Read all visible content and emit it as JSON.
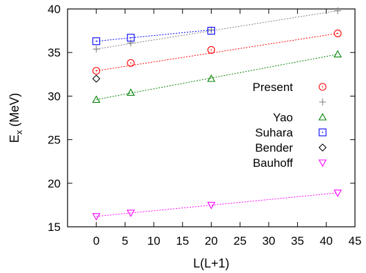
{
  "chart_data": {
    "type": "scatter",
    "xlabel": "L(L+1)",
    "ylabel_main": "E",
    "ylabel_sub": "x",
    "ylabel_unit": " (MeV)",
    "xlim": [
      -5,
      45
    ],
    "ylim": [
      15,
      40
    ],
    "xticks": [
      0,
      5,
      10,
      15,
      20,
      25,
      30,
      35,
      40,
      45
    ],
    "yticks": [
      15,
      20,
      25,
      30,
      35,
      40
    ],
    "legend_position": "right",
    "series": [
      {
        "name": "Present",
        "marker": "circle",
        "color": "#ff0000",
        "points": [
          [
            0,
            32.9
          ],
          [
            6,
            33.8
          ],
          [
            20,
            35.3
          ],
          [
            42,
            37.2
          ]
        ],
        "fit": [
          [
            0,
            32.9
          ],
          [
            42,
            37.2
          ]
        ]
      },
      {
        "name": "",
        "marker": "plus",
        "color": "#7f7f7f",
        "points": [
          [
            0,
            35.4
          ],
          [
            6,
            36.1
          ],
          [
            20,
            37.6
          ],
          [
            42,
            39.8
          ]
        ],
        "fit": [
          [
            0,
            35.4
          ],
          [
            42,
            39.8
          ]
        ]
      },
      {
        "name": "Yao",
        "marker": "triangle-up",
        "color": "#008000",
        "points": [
          [
            0,
            29.6
          ],
          [
            6,
            30.4
          ],
          [
            20,
            32.0
          ],
          [
            42,
            34.8
          ]
        ],
        "fit": [
          [
            0,
            29.6
          ],
          [
            42,
            34.8
          ]
        ]
      },
      {
        "name": "Suhara",
        "marker": "square",
        "color": "#0000ff",
        "points": [
          [
            0,
            36.3
          ],
          [
            6,
            36.7
          ],
          [
            20,
            37.5
          ]
        ],
        "fit": [
          [
            0,
            36.3
          ],
          [
            20,
            37.6
          ]
        ]
      },
      {
        "name": "Bender",
        "marker": "diamond",
        "color": "#000000",
        "points": [
          [
            0,
            32.0
          ]
        ],
        "fit": null
      },
      {
        "name": "Bauhoff",
        "marker": "triangle-down",
        "color": "#ff00ff",
        "points": [
          [
            0,
            16.2
          ],
          [
            6,
            16.6
          ],
          [
            20,
            17.5
          ],
          [
            42,
            18.9
          ]
        ],
        "fit": [
          [
            0,
            16.2
          ],
          [
            42,
            18.9
          ]
        ]
      }
    ]
  }
}
